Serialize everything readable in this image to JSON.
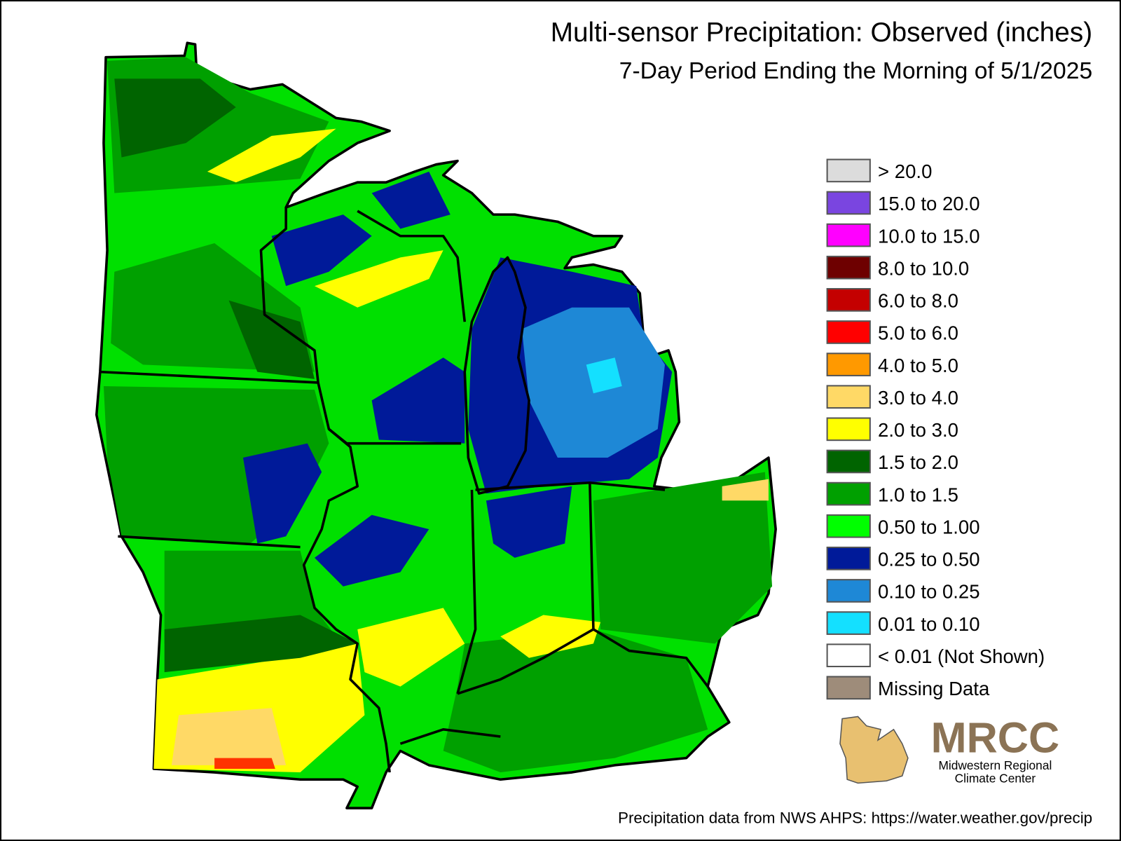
{
  "header": {
    "title": "Multi-sensor Precipitation: Observed (inches)",
    "subtitle": "7-Day Period Ending the Morning of 5/1/2025"
  },
  "legend": {
    "items": [
      {
        "label": "> 20.0",
        "color": "#dcdcdc"
      },
      {
        "label": "15.0 to 20.0",
        "color": "#7a45e0"
      },
      {
        "label": "10.0 to 15.0",
        "color": "#ff00ff"
      },
      {
        "label": "8.0 to 10.0",
        "color": "#6e0000"
      },
      {
        "label": "6.0 to 8.0",
        "color": "#c40000"
      },
      {
        "label": "5.0 to 6.0",
        "color": "#ff0000"
      },
      {
        "label": "4.0 to 5.0",
        "color": "#ff9900"
      },
      {
        "label": "3.0 to 4.0",
        "color": "#ffd966"
      },
      {
        "label": "2.0 to 3.0",
        "color": "#ffff00"
      },
      {
        "label": "1.5 to 2.0",
        "color": "#006400"
      },
      {
        "label": "1.0 to 1.5",
        "color": "#00a000"
      },
      {
        "label": "0.50 to 1.00",
        "color": "#00ff00"
      },
      {
        "label": "0.25 to 0.50",
        "color": "#001a99"
      },
      {
        "label": "0.10 to 0.25",
        "color": "#1e88d6"
      },
      {
        "label": "0.01 to 0.10",
        "color": "#14e0ff"
      },
      {
        "label": "< 0.01 (Not Shown)",
        "color": "#ffffff"
      },
      {
        "label": "Missing Data",
        "color": "#9e8c7a"
      }
    ]
  },
  "logo": {
    "name": "MRCC",
    "line1": "Midwestern Regional",
    "line2": "Climate Center"
  },
  "footer": {
    "source": "Precipitation data from NWS AHPS: https://water.weather.gov/precip"
  }
}
